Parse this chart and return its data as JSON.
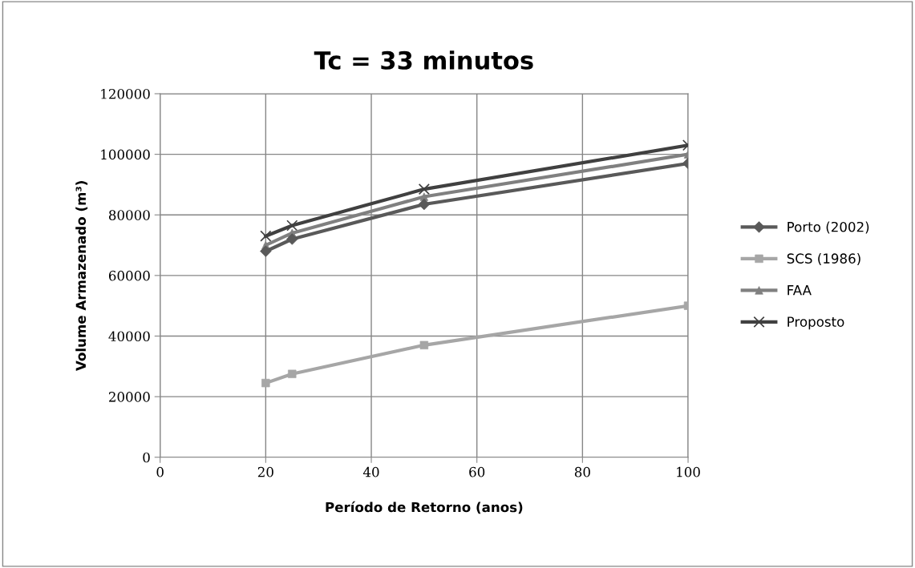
{
  "chart_data": {
    "type": "line",
    "title": "Tc = 33 minutos",
    "xlabel": "Período de Retorno (anos)",
    "ylabel": "Volume Armazenado (m³)",
    "x": [
      20,
      25,
      50,
      100
    ],
    "series": [
      {
        "name": "Porto (2002)",
        "color": "#595959",
        "marker": "diamond",
        "values": [
          68000,
          72000,
          83500,
          97000
        ]
      },
      {
        "name": "SCS (1986)",
        "color": "#a6a6a6",
        "marker": "square",
        "values": [
          24500,
          27500,
          37000,
          50000
        ]
      },
      {
        "name": "FAA",
        "color": "#808080",
        "marker": "triangle",
        "values": [
          70000,
          74000,
          86000,
          100000
        ]
      },
      {
        "name": "Proposto",
        "color": "#404040",
        "marker": "cross",
        "values": [
          73000,
          76500,
          88500,
          103000
        ]
      }
    ],
    "xlim": [
      0,
      100
    ],
    "xticks": [
      0,
      20,
      40,
      60,
      80,
      100
    ],
    "ylim": [
      0,
      120000
    ],
    "yticks": [
      0,
      20000,
      40000,
      60000,
      80000,
      100000,
      120000
    ],
    "grid": true,
    "legend": "right",
    "line_style": "solid"
  }
}
